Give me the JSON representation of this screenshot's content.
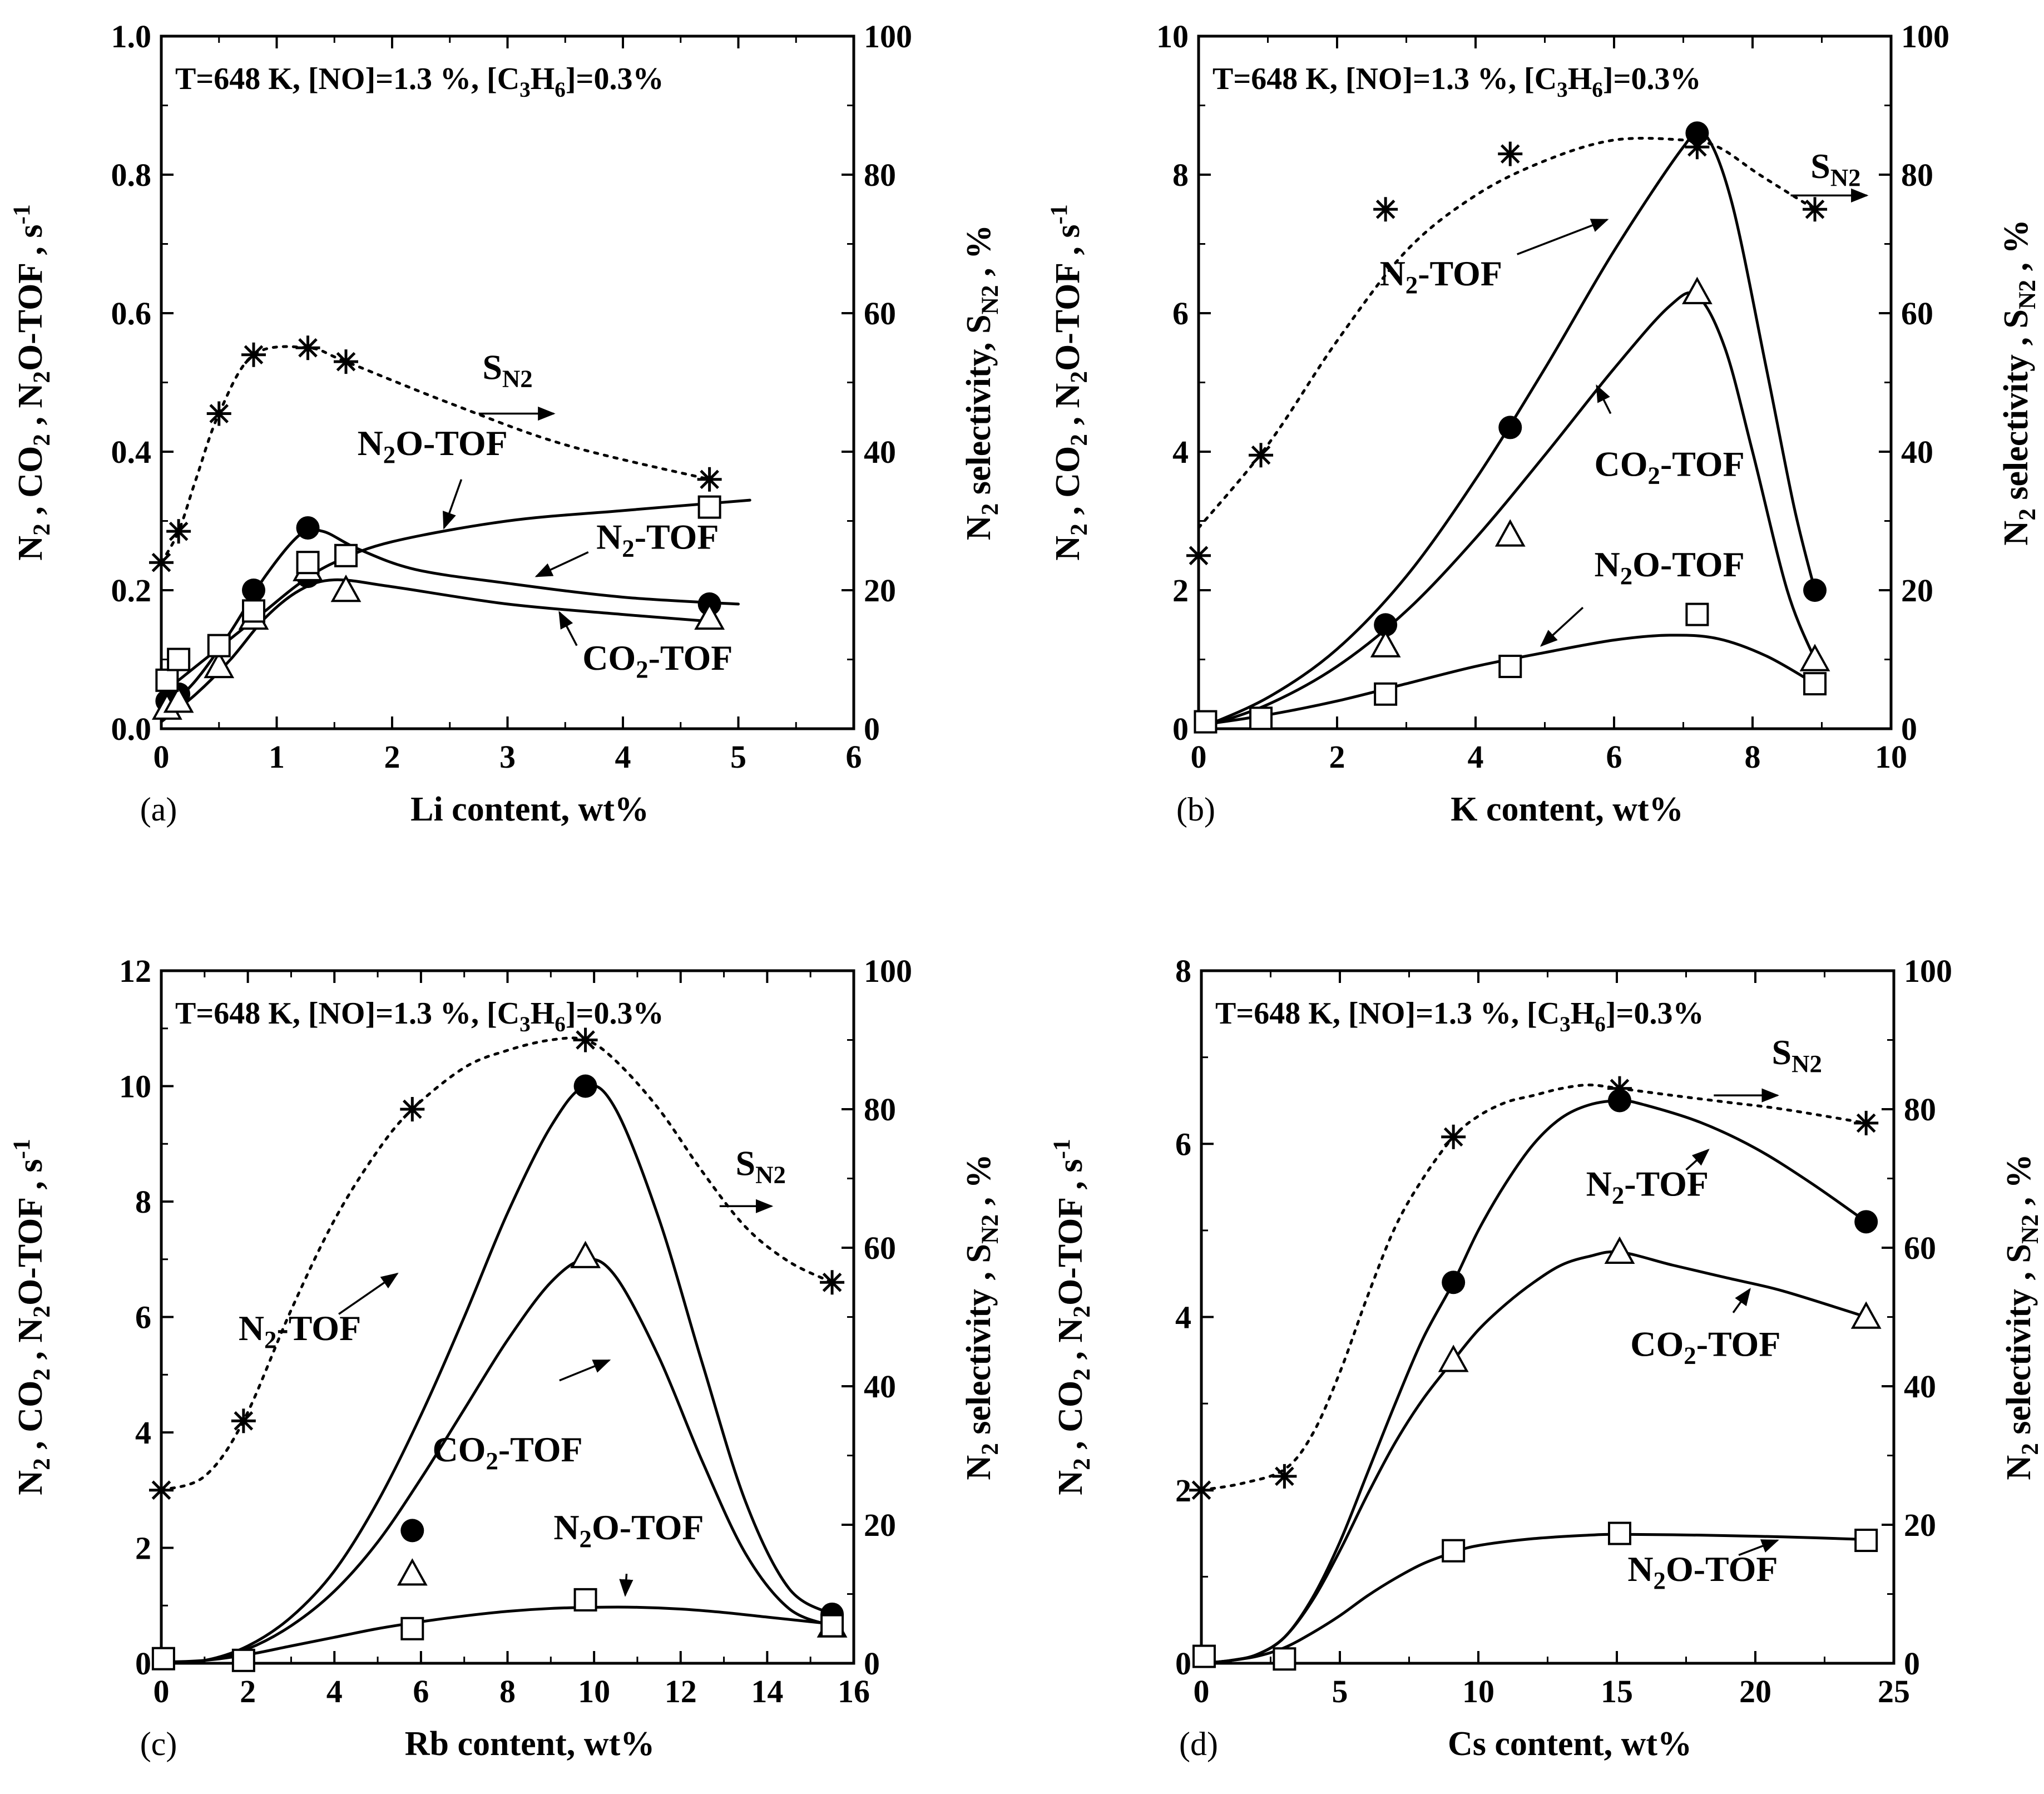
{
  "chart_data": [
    {
      "type": "scatter",
      "panel_label": "(a)",
      "conditions": "T=648 K, [NO]=1.3 %, [C3H6]=0.3%",
      "xlabel": "Li content, wt%",
      "ylabel": "N2 , CO2 , N2O-TOF , s-1",
      "y2label": "N2 selectivity, SN2 , %",
      "xlim": [
        0,
        6
      ],
      "ylim": [
        0,
        1.0
      ],
      "y2lim": [
        0,
        100
      ],
      "xticks": [
        0,
        1,
        2,
        3,
        4,
        5,
        6
      ],
      "yticks": [
        "0.0",
        "0.2",
        "0.4",
        "0.6",
        "0.8",
        "1.0"
      ],
      "y2ticks": [
        0,
        20,
        40,
        60,
        80,
        100
      ],
      "series": [
        {
          "name": "N2-TOF",
          "marker": "filled-circle",
          "x": [
            0.05,
            0.15,
            0.8,
            1.27,
            1.27,
            4.75
          ],
          "y": [
            0.04,
            0.05,
            0.2,
            0.29,
            0.22,
            0.18
          ]
        },
        {
          "name": "CO2-TOF",
          "marker": "open-triangle",
          "x": [
            0.05,
            0.15,
            0.5,
            0.8,
            1.27,
            1.6,
            4.75
          ],
          "y": [
            0.03,
            0.04,
            0.09,
            0.16,
            0.23,
            0.2,
            0.16
          ]
        },
        {
          "name": "N2O-TOF",
          "marker": "open-square",
          "x": [
            0.05,
            0.15,
            0.5,
            0.8,
            1.27,
            1.6,
            4.75
          ],
          "y": [
            0.07,
            0.1,
            0.12,
            0.17,
            0.24,
            0.25,
            0.32
          ]
        },
        {
          "name": "SN2",
          "marker": "asterisk",
          "axis": "right",
          "x": [
            0.0,
            0.15,
            0.5,
            0.8,
            1.27,
            1.6,
            4.75
          ],
          "y": [
            24,
            28.5,
            45.5,
            54,
            55,
            53,
            36
          ]
        }
      ],
      "annotations": [
        "SN2",
        "N2O-TOF",
        "N2-TOF",
        "CO2-TOF"
      ]
    },
    {
      "type": "scatter",
      "panel_label": "(b)",
      "conditions": "T=648 K, [NO]=1.3 %, [C3H6]=0.3%",
      "xlabel": "K content, wt%",
      "ylabel": "N2 , CO2 , N2O-TOF , s-1",
      "y2label": "N2 selectivity , SN2 , %",
      "xlim": [
        0,
        10
      ],
      "ylim": [
        0,
        10
      ],
      "y2lim": [
        0,
        100
      ],
      "xticks": [
        0,
        2,
        4,
        6,
        8,
        10
      ],
      "yticks": [
        "0",
        "2",
        "4",
        "6",
        "8",
        "10"
      ],
      "y2ticks": [
        0,
        20,
        40,
        60,
        80,
        100
      ],
      "series": [
        {
          "name": "N2-TOF",
          "marker": "filled-circle",
          "x": [
            2.7,
            4.5,
            7.2,
            8.9
          ],
          "y": [
            1.5,
            4.35,
            8.6,
            2.0
          ]
        },
        {
          "name": "CO2-TOF",
          "marker": "open-triangle",
          "x": [
            2.7,
            4.5,
            7.2,
            8.9
          ],
          "y": [
            1.2,
            2.8,
            6.3,
            1.0
          ]
        },
        {
          "name": "N2O-TOF",
          "marker": "open-square",
          "x": [
            0.1,
            0.9,
            2.7,
            4.5,
            7.2,
            8.9
          ],
          "y": [
            0.1,
            0.15,
            0.5,
            0.9,
            1.65,
            0.65
          ]
        },
        {
          "name": "SN2",
          "marker": "asterisk",
          "axis": "right",
          "x": [
            0.0,
            0.9,
            2.7,
            4.5,
            7.2,
            8.9
          ],
          "y": [
            25,
            39.5,
            75,
            83,
            84,
            75
          ]
        }
      ],
      "annotations": [
        "SN2",
        "N2-TOF",
        "CO2-TOF",
        "N2O-TOF"
      ]
    },
    {
      "type": "scatter",
      "panel_label": "(c)",
      "conditions": "T=648 K, [NO]=1.3 %, [C3H6]=0.3%",
      "xlabel": "Rb content, wt%",
      "ylabel": "N2 , CO2 , N2O-TOF , s-1",
      "y2label": "N2 selectivity , SN2 , %",
      "xlim": [
        0,
        16
      ],
      "ylim": [
        0,
        12
      ],
      "y2lim": [
        0,
        100
      ],
      "xticks": [
        0,
        2,
        4,
        6,
        8,
        10,
        12,
        14,
        16
      ],
      "yticks": [
        "0",
        "2",
        "4",
        "6",
        "8",
        "10",
        "12"
      ],
      "y2ticks": [
        0,
        20,
        40,
        60,
        80,
        100
      ],
      "series": [
        {
          "name": "N2-TOF",
          "marker": "filled-circle",
          "x": [
            5.8,
            9.8,
            15.5
          ],
          "y": [
            2.3,
            10.0,
            0.85
          ]
        },
        {
          "name": "CO2-TOF",
          "marker": "open-triangle",
          "x": [
            5.8,
            9.8,
            15.5
          ],
          "y": [
            1.55,
            7.05,
            0.65
          ]
        },
        {
          "name": "N2O-TOF",
          "marker": "open-square",
          "x": [
            0.05,
            1.9,
            5.8,
            9.8,
            15.5
          ],
          "y": [
            0.08,
            0.05,
            0.6,
            1.1,
            0.65
          ]
        },
        {
          "name": "SN2",
          "marker": "asterisk",
          "axis": "right",
          "x": [
            0.0,
            1.9,
            5.8,
            9.8,
            15.5
          ],
          "y": [
            25,
            35,
            80,
            90,
            55
          ]
        }
      ],
      "annotations": [
        "SN2",
        "N2-TOF",
        "CO2-TOF",
        "N2O-TOF"
      ]
    },
    {
      "type": "scatter",
      "panel_label": "(d)",
      "conditions": "T=648 K, [NO]=1.3 %, [C3H6]=0.3%",
      "xlabel": "Cs content, wt%",
      "ylabel": "N2 , CO2 , N2O-TOF , s-1",
      "y2label": "N2 selectivity , SN2 , %",
      "xlim": [
        0,
        25
      ],
      "ylim": [
        0,
        8
      ],
      "y2lim": [
        0,
        100
      ],
      "xticks": [
        0,
        5,
        10,
        15,
        20,
        25
      ],
      "yticks": [
        "0",
        "2",
        "4",
        "6",
        "8"
      ],
      "y2ticks": [
        0,
        20,
        40,
        60,
        80,
        100
      ],
      "series": [
        {
          "name": "N2-TOF",
          "marker": "filled-circle",
          "x": [
            9.1,
            15.1,
            24.0
          ],
          "y": [
            4.4,
            6.5,
            5.1
          ]
        },
        {
          "name": "CO2-TOF",
          "marker": "open-triangle",
          "x": [
            9.1,
            15.1,
            24.0
          ],
          "y": [
            3.5,
            4.75,
            4.0
          ]
        },
        {
          "name": "N2O-TOF",
          "marker": "open-square",
          "x": [
            0.1,
            3.0,
            9.1,
            15.1,
            24.0
          ],
          "y": [
            0.08,
            0.05,
            1.3,
            1.5,
            1.42
          ]
        },
        {
          "name": "SN2",
          "marker": "asterisk",
          "axis": "right",
          "x": [
            0.0,
            3.0,
            9.1,
            15.1,
            24.0
          ],
          "y": [
            25,
            27,
            76,
            83,
            78
          ]
        }
      ],
      "annotations": [
        "SN2",
        "N2-TOF",
        "CO2-TOF",
        "N2O-TOF"
      ]
    }
  ]
}
